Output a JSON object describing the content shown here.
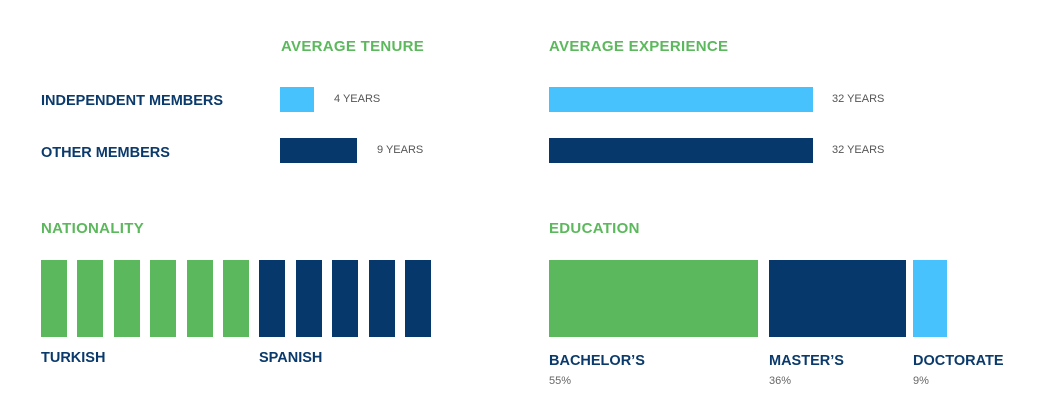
{
  "colors": {
    "green": "#5cb85c",
    "light_blue": "#47c2fc",
    "navy": "#07386b"
  },
  "tenure": {
    "heading": "AVERAGE TENURE",
    "rows": [
      {
        "label": "INDEPENDENT MEMBERS",
        "value": 4,
        "value_label": "4 YEARS",
        "color": "#47c2fc"
      },
      {
        "label": "OTHER MEMBERS",
        "value": 9,
        "value_label": "9 YEARS",
        "color": "#07386b"
      }
    ]
  },
  "experience": {
    "heading": "AVERAGE EXPERIENCE",
    "rows": [
      {
        "value": 32,
        "value_label": "32 YEARS",
        "color": "#47c2fc"
      },
      {
        "value": 32,
        "value_label": "32 YEARS",
        "color": "#07386b"
      }
    ]
  },
  "nationality": {
    "heading": "NATIONALITY",
    "groups": [
      {
        "label": "TURKISH",
        "count": 6,
        "color": "#5cb85c"
      },
      {
        "label": "SPANISH",
        "count": 5,
        "color": "#07386b"
      }
    ]
  },
  "education": {
    "heading": "EDUCATION",
    "segments": [
      {
        "label": "BACHELOR’S",
        "value": 55,
        "pct_label": "55%",
        "color": "#5cb85c"
      },
      {
        "label": "MASTER’S",
        "value": 36,
        "pct_label": "36%",
        "color": "#07386b"
      },
      {
        "label": "DOCTORATE",
        "value": 9,
        "pct_label": "9%",
        "color": "#47c2fc"
      }
    ]
  },
  "chart_data": [
    {
      "type": "bar",
      "title": "AVERAGE TENURE",
      "categories": [
        "INDEPENDENT MEMBERS",
        "OTHER MEMBERS"
      ],
      "values": [
        4,
        9
      ],
      "unit": "YEARS"
    },
    {
      "type": "bar",
      "title": "AVERAGE EXPERIENCE",
      "categories": [
        "INDEPENDENT MEMBERS",
        "OTHER MEMBERS"
      ],
      "values": [
        32,
        32
      ],
      "unit": "YEARS"
    },
    {
      "type": "bar",
      "title": "NATIONALITY",
      "categories": [
        "TURKISH",
        "SPANISH"
      ],
      "values": [
        6,
        5
      ]
    },
    {
      "type": "bar",
      "title": "EDUCATION",
      "categories": [
        "BACHELOR’S",
        "MASTER’S",
        "DOCTORATE"
      ],
      "values": [
        55,
        36,
        9
      ],
      "unit": "%"
    }
  ]
}
